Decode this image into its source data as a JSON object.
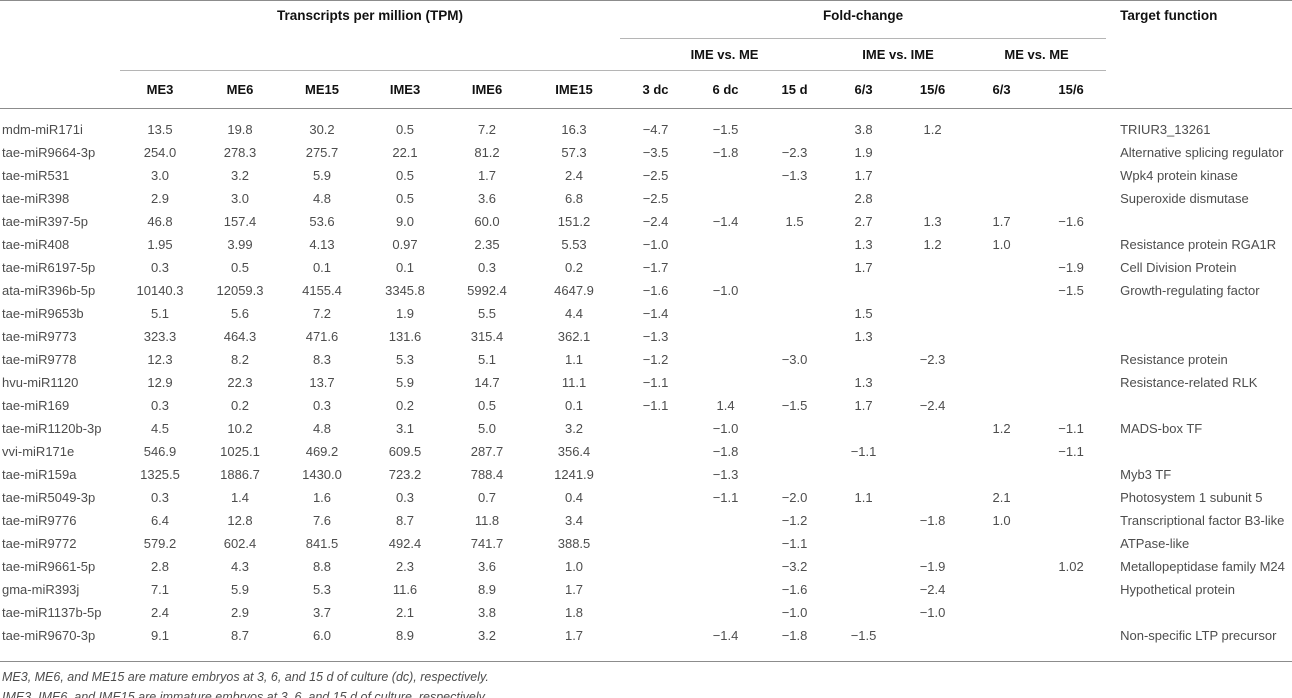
{
  "table": {
    "header": {
      "tpm_group": "Transcripts per million (TPM)",
      "fold_change_group": "Fold-change",
      "target_function": "Target function",
      "subgroups": [
        "IME vs. ME",
        "IME vs. IME",
        "ME vs. ME"
      ],
      "columns": [
        "ME3",
        "ME6",
        "ME15",
        "IME3",
        "IME6",
        "IME15",
        "3 dc",
        "6 dc",
        "15 d",
        "6/3",
        "15/6",
        "6/3",
        "15/6"
      ]
    },
    "rows": [
      {
        "name": "mdm-miR171i",
        "values": [
          "13.5",
          "19.8",
          "30.2",
          "0.5",
          "7.2",
          "16.3",
          "−4.7",
          "−1.5",
          "",
          "3.8",
          "1.2",
          "",
          ""
        ],
        "target": "TRIUR3_13261"
      },
      {
        "name": "tae-miR9664-3p",
        "values": [
          "254.0",
          "278.3",
          "275.7",
          "22.1",
          "81.2",
          "57.3",
          "−3.5",
          "−1.8",
          "−2.3",
          "1.9",
          "",
          "",
          ""
        ],
        "target": "Alternative splicing regulator"
      },
      {
        "name": "tae-miR531",
        "values": [
          "3.0",
          "3.2",
          "5.9",
          "0.5",
          "1.7",
          "2.4",
          "−2.5",
          "",
          "−1.3",
          "1.7",
          "",
          "",
          ""
        ],
        "target": "Wpk4 protein kinase"
      },
      {
        "name": "tae-miR398",
        "values": [
          "2.9",
          "3.0",
          "4.8",
          "0.5",
          "3.6",
          "6.8",
          "−2.5",
          "",
          "",
          "2.8",
          "",
          "",
          ""
        ],
        "target": "Superoxide dismutase"
      },
      {
        "name": "tae-miR397-5p",
        "values": [
          "46.8",
          "157.4",
          "53.6",
          "9.0",
          "60.0",
          "151.2",
          "−2.4",
          "−1.4",
          "1.5",
          "2.7",
          "1.3",
          "1.7",
          "−1.6"
        ],
        "target": ""
      },
      {
        "name": "tae-miR408",
        "values": [
          "1.95",
          "3.99",
          "4.13",
          "0.97",
          "2.35",
          "5.53",
          "−1.0",
          "",
          "",
          "1.3",
          "1.2",
          "1.0",
          ""
        ],
        "target": "Resistance protein RGA1R"
      },
      {
        "name": "tae-miR6197-5p",
        "values": [
          "0.3",
          "0.5",
          "0.1",
          "0.1",
          "0.3",
          "0.2",
          "−1.7",
          "",
          "",
          "1.7",
          "",
          "",
          "−1.9"
        ],
        "target": "Cell Division Protein"
      },
      {
        "name": "ata-miR396b-5p",
        "values": [
          "10140.3",
          "12059.3",
          "4155.4",
          "3345.8",
          "5992.4",
          "4647.9",
          "−1.6",
          "−1.0",
          "",
          "",
          "",
          "",
          "−1.5"
        ],
        "target": "Growth-regulating factor"
      },
      {
        "name": "tae-miR9653b",
        "values": [
          "5.1",
          "5.6",
          "7.2",
          "1.9",
          "5.5",
          "4.4",
          "−1.4",
          "",
          "",
          "1.5",
          "",
          "",
          ""
        ],
        "target": ""
      },
      {
        "name": "tae-miR9773",
        "values": [
          "323.3",
          "464.3",
          "471.6",
          "131.6",
          "315.4",
          "362.1",
          "−1.3",
          "",
          "",
          "1.3",
          "",
          "",
          ""
        ],
        "target": ""
      },
      {
        "name": "tae-miR9778",
        "values": [
          "12.3",
          "8.2",
          "8.3",
          "5.3",
          "5.1",
          "1.1",
          "−1.2",
          "",
          "−3.0",
          "",
          "−2.3",
          "",
          ""
        ],
        "target": "Resistance protein"
      },
      {
        "name": "hvu-miR1120",
        "values": [
          "12.9",
          "22.3",
          "13.7",
          "5.9",
          "14.7",
          "11.1",
          "−1.1",
          "",
          "",
          "1.3",
          "",
          "",
          ""
        ],
        "target": "Resistance-related RLK"
      },
      {
        "name": "tae-miR169",
        "values": [
          "0.3",
          "0.2",
          "0.3",
          "0.2",
          "0.5",
          "0.1",
          "−1.1",
          "1.4",
          "−1.5",
          "1.7",
          "−2.4",
          "",
          ""
        ],
        "target": ""
      },
      {
        "name": "tae-miR1120b-3p",
        "values": [
          "4.5",
          "10.2",
          "4.8",
          "3.1",
          "5.0",
          "3.2",
          "",
          "−1.0",
          "",
          "",
          "",
          "1.2",
          "−1.1"
        ],
        "target": "MADS-box TF"
      },
      {
        "name": "vvi-miR171e",
        "values": [
          "546.9",
          "1025.1",
          "469.2",
          "609.5",
          "287.7",
          "356.4",
          "",
          "−1.8",
          "",
          "−1.1",
          "",
          "",
          "−1.1"
        ],
        "target": ""
      },
      {
        "name": "tae-miR159a",
        "values": [
          "1325.5",
          "1886.7",
          "1430.0",
          "723.2",
          "788.4",
          "1241.9",
          "",
          "−1.3",
          "",
          "",
          "",
          "",
          ""
        ],
        "target": "Myb3 TF"
      },
      {
        "name": "tae-miR5049-3p",
        "values": [
          "0.3",
          "1.4",
          "1.6",
          "0.3",
          "0.7",
          "0.4",
          "",
          "−1.1",
          "−2.0",
          "1.1",
          "",
          "2.1",
          ""
        ],
        "target": "Photosystem 1 subunit 5"
      },
      {
        "name": "tae-miR9776",
        "values": [
          "6.4",
          "12.8",
          "7.6",
          "8.7",
          "11.8",
          "3.4",
          "",
          "",
          "−1.2",
          "",
          "−1.8",
          "1.0",
          ""
        ],
        "target": "Transcriptional factor B3-like"
      },
      {
        "name": "tae-miR9772",
        "values": [
          "579.2",
          "602.4",
          "841.5",
          "492.4",
          "741.7",
          "388.5",
          "",
          "",
          "−1.1",
          "",
          "",
          "",
          ""
        ],
        "target": "ATPase-like"
      },
      {
        "name": "tae-miR9661-5p",
        "values": [
          "2.8",
          "4.3",
          "8.8",
          "2.3",
          "3.6",
          "1.0",
          "",
          "",
          "−3.2",
          "",
          "−1.9",
          "",
          "1.02"
        ],
        "target": "Metallopeptidase family M24"
      },
      {
        "name": "gma-miR393j",
        "values": [
          "7.1",
          "5.9",
          "5.3",
          "11.6",
          "8.9",
          "1.7",
          "",
          "",
          "−1.6",
          "",
          "−2.4",
          "",
          ""
        ],
        "target": "Hypothetical protein"
      },
      {
        "name": "tae-miR1137b-5p",
        "values": [
          "2.4",
          "2.9",
          "3.7",
          "2.1",
          "3.8",
          "1.8",
          "",
          "",
          "−1.0",
          "",
          "−1.0",
          "",
          ""
        ],
        "target": ""
      },
      {
        "name": "tae-miR9670-3p",
        "values": [
          "9.1",
          "8.7",
          "6.0",
          "8.9",
          "3.2",
          "1.7",
          "",
          "−1.4",
          "−1.8",
          "−1.5",
          "",
          "",
          ""
        ],
        "target": "Non-specific LTP precursor"
      }
    ],
    "footnotes": [
      "ME3, ME6, and ME15 are mature embryos at 3, 6, and 15 d of culture (dc), respectively.",
      "IME3, IME6, and IME15 are immature embryos at 3, 6, and 15 d of culture, respectively."
    ]
  }
}
